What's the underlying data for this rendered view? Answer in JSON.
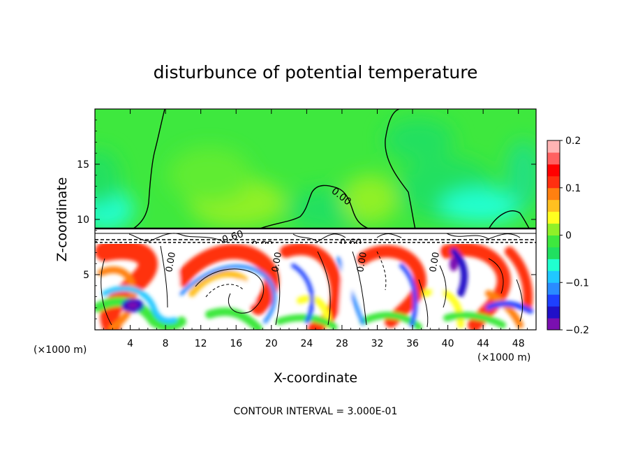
{
  "chart_data": {
    "type": "heatmap",
    "title": "disturbunce of potential temperature",
    "xlabel": "X-coordinate",
    "ylabel": "Z-coordinate",
    "x_unit_label": "(×1000 m)",
    "x_unit_label_right": "(×1000 m)",
    "xlim": [
      0,
      50
    ],
    "ylim": [
      0,
      20
    ],
    "x_ticks": [
      4,
      8,
      12,
      16,
      20,
      24,
      28,
      32,
      36,
      40,
      44,
      48
    ],
    "y_ticks": [
      5,
      10,
      15
    ],
    "footer": "CONTOUR INTERVAL = 3.000E-01",
    "colorbar": {
      "min": -0.2,
      "max": 0.2,
      "tick_values": [
        0.2,
        0.1,
        0,
        -0.1,
        -0.2
      ],
      "tick_labels": [
        "0.2",
        "0.1",
        "0",
        "−0.1",
        "−0.2"
      ],
      "colors": [
        "#7a0fb0",
        "#2010c8",
        "#1e40ff",
        "#2a8cff",
        "#20c8ff",
        "#20ffd0",
        "#20e060",
        "#3ee83e",
        "#90f028",
        "#ffff20",
        "#ffc020",
        "#ff8010",
        "#ff3010",
        "#ff0000",
        "#ff6060",
        "#ffb4b4"
      ]
    },
    "contour_labels": [
      {
        "text": "0.00",
        "x": 27.5,
        "y": 12.4
      },
      {
        "text": "0.60",
        "x": 29.5,
        "y": 8.2
      },
      {
        "text": "0.00",
        "x": 18.8,
        "y": 7.9
      },
      {
        "text": "0.60",
        "x": 15.5,
        "y": 8.5
      },
      {
        "text": "0.00",
        "x": 8.2,
        "y": 5.2
      },
      {
        "text": "0.00",
        "x": 20.5,
        "y": 5.4
      },
      {
        "text": "0.00",
        "x": 30.5,
        "y": 5.5
      },
      {
        "text": "0.00",
        "x": 38.8,
        "y": 5.8
      }
    ]
  }
}
